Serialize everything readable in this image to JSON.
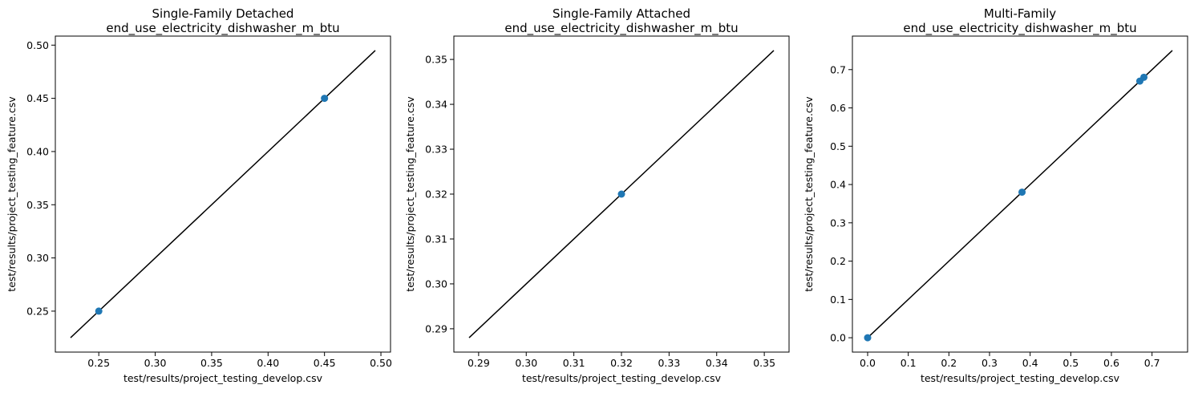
{
  "chart_data": [
    {
      "type": "scatter",
      "title": "Single-Family Detached",
      "subtitle": "end_use_electricity_dishwasher_m_btu",
      "xlabel": "test/results/project_testing_develop.csv",
      "ylabel": "test/results/project_testing_feature.csv",
      "xlim": [
        0.2115,
        0.5085
      ],
      "ylim": [
        0.2115,
        0.5085
      ],
      "xticks": [
        "0.25",
        "0.30",
        "0.35",
        "0.40",
        "0.45",
        "0.50"
      ],
      "yticks": [
        "0.25",
        "0.30",
        "0.35",
        "0.40",
        "0.45",
        "0.50"
      ],
      "points": [
        {
          "x": 0.25,
          "y": 0.25
        },
        {
          "x": 0.45,
          "y": 0.45
        }
      ],
      "reference_line": {
        "from": [
          0.225,
          0.225
        ],
        "to": [
          0.495,
          0.495
        ]
      },
      "grid": false,
      "legend": "none"
    },
    {
      "type": "scatter",
      "title": "Single-Family Attached",
      "subtitle": "end_use_electricity_dishwasher_m_btu",
      "xlabel": "test/results/project_testing_develop.csv",
      "ylabel": "test/results/project_testing_feature.csv",
      "xlim": [
        0.2848,
        0.3552
      ],
      "ylim": [
        0.2848,
        0.3552
      ],
      "xticks": [
        "0.29",
        "0.30",
        "0.31",
        "0.32",
        "0.33",
        "0.34",
        "0.35"
      ],
      "yticks": [
        "0.29",
        "0.30",
        "0.31",
        "0.32",
        "0.33",
        "0.34",
        "0.35"
      ],
      "points": [
        {
          "x": 0.32,
          "y": 0.32
        }
      ],
      "reference_line": {
        "from": [
          0.288,
          0.288
        ],
        "to": [
          0.352,
          0.352
        ]
      },
      "grid": false,
      "legend": "none"
    },
    {
      "type": "scatter",
      "title": "Multi-Family",
      "subtitle": "end_use_electricity_dishwasher_m_btu",
      "xlabel": "test/results/project_testing_develop.csv",
      "ylabel": "test/results/project_testing_feature.csv",
      "xlim": [
        -0.0375,
        0.7875
      ],
      "ylim": [
        -0.0375,
        0.7875
      ],
      "xticks": [
        "0.0",
        "0.1",
        "0.2",
        "0.3",
        "0.4",
        "0.5",
        "0.6",
        "0.7"
      ],
      "yticks": [
        "0.0",
        "0.1",
        "0.2",
        "0.3",
        "0.4",
        "0.5",
        "0.6",
        "0.7"
      ],
      "points": [
        {
          "x": 0.0,
          "y": 0.0
        },
        {
          "x": 0.38,
          "y": 0.38
        },
        {
          "x": 0.67,
          "y": 0.67
        },
        {
          "x": 0.68,
          "y": 0.68
        }
      ],
      "reference_line": {
        "from": [
          0.0,
          0.0
        ],
        "to": [
          0.75,
          0.75
        ]
      },
      "grid": false,
      "legend": "none"
    }
  ],
  "colors": {
    "point": "#1f77b4",
    "line": "#000000",
    "axes": "#000000"
  }
}
